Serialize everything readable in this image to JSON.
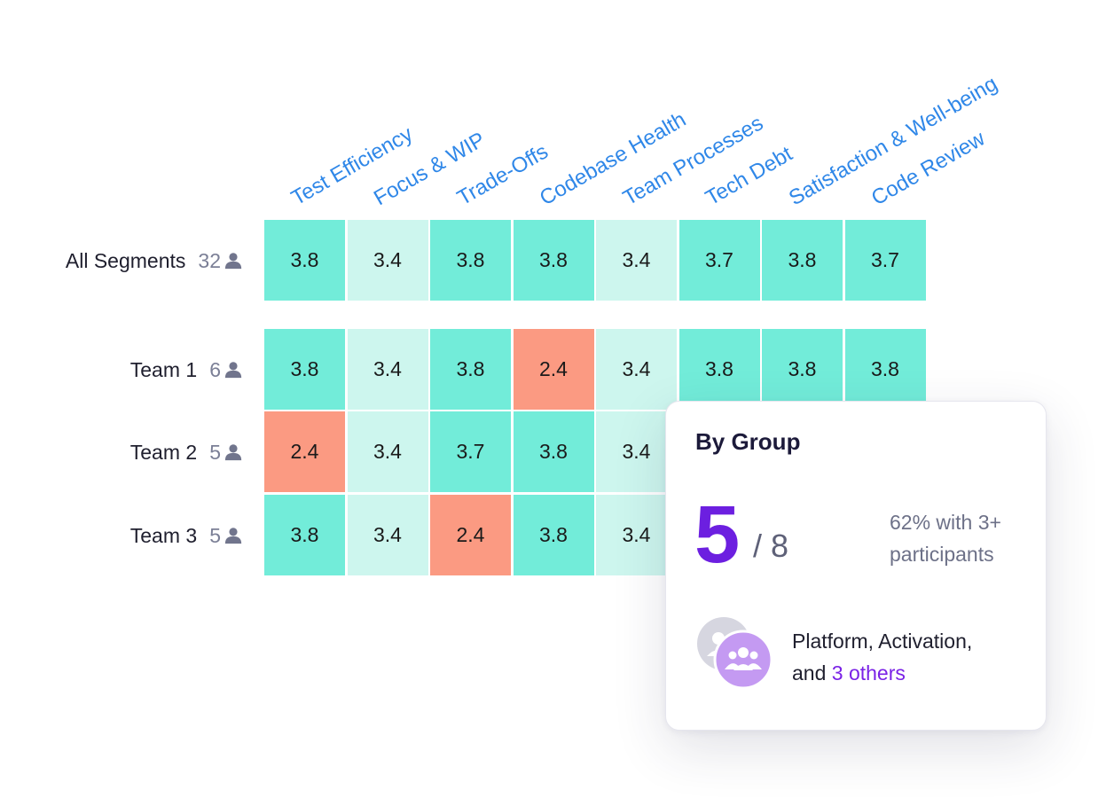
{
  "chart_data": {
    "type": "heatmap",
    "columns": [
      "Test Efficiency",
      "Focus & WIP",
      "Trade-Offs",
      "Codebase Health",
      "Team Processes",
      "Tech Debt",
      "Satisfaction & Well-being",
      "Code Review"
    ],
    "rows": [
      {
        "label": "All Segments",
        "count": "32",
        "values": [
          3.8,
          3.4,
          3.8,
          3.8,
          3.4,
          3.7,
          3.8,
          3.7
        ]
      },
      {
        "label": "Team 1",
        "count": "6",
        "values": [
          3.8,
          3.4,
          3.8,
          2.4,
          3.4,
          3.8,
          3.8,
          3.8
        ]
      },
      {
        "label": "Team 2",
        "count": "5",
        "values": [
          2.4,
          3.4,
          3.7,
          3.8,
          3.4,
          null,
          null,
          null
        ]
      },
      {
        "label": "Team 3",
        "count": "5",
        "values": [
          3.8,
          3.4,
          2.4,
          3.8,
          3.4,
          null,
          null,
          null
        ]
      }
    ],
    "color_scale": {
      "high": "#72ecd9",
      "mid": "#cdf6ee",
      "low": "#fb9a82"
    }
  },
  "tooltip": {
    "title": "By Group",
    "big_number": "5",
    "total": "/ 8",
    "percent_text": "62% with 3+ participants",
    "groups_text": "Platform, Activation,",
    "groups_and": "and",
    "groups_others": "3 others"
  },
  "colors": {
    "header": "#2f87e8",
    "accent": "#6c1fe0",
    "muted": "#7b7f96"
  }
}
